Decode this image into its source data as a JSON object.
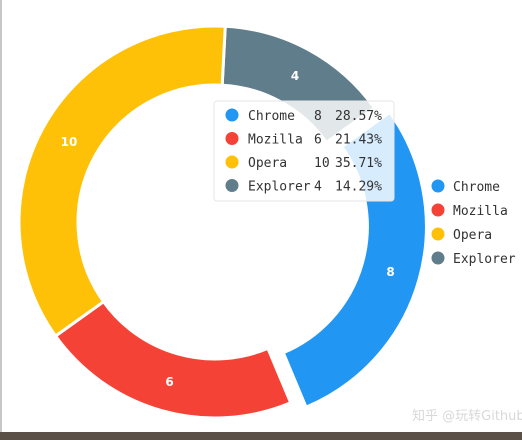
{
  "chart_data": {
    "type": "pie",
    "variant": "donut",
    "categories": [
      "Chrome",
      "Mozilla",
      "Opera",
      "Explorer"
    ],
    "values": [
      8,
      6,
      10,
      4
    ],
    "percent_labels": [
      "28.57%",
      "21.43%",
      "35.71%",
      "14.29%"
    ],
    "colors": [
      "#2196F3",
      "#F44336",
      "#FFC107",
      "#607D8B"
    ],
    "exploded": "Chrome",
    "legend_position": "right",
    "tooltip_visible": true
  },
  "watermark": "知乎 @玩转Github"
}
